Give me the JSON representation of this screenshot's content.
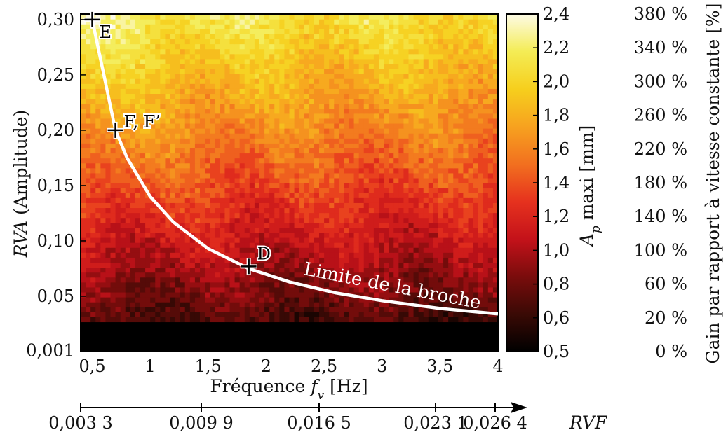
{
  "chart_data": {
    "type": "heatmap",
    "xlabel": "Fréquence",
    "xlabel_var": "f",
    "xlabel_sub": "v",
    "xlabel_unit": "[Hz]",
    "ylabel_var": "RVA",
    "ylabel_rest": "(Amplitude)",
    "xlim": [
      0.4,
      4.0
    ],
    "ylim": [
      0.0,
      0.305
    ],
    "x_ticks": [
      {
        "v": 0.5,
        "t": "0,5"
      },
      {
        "v": 1.0,
        "t": "1"
      },
      {
        "v": 1.5,
        "t": "1,5"
      },
      {
        "v": 2.0,
        "t": "2"
      },
      {
        "v": 2.5,
        "t": "2,5"
      },
      {
        "v": 3.0,
        "t": "3"
      },
      {
        "v": 3.5,
        "t": "3,5"
      },
      {
        "v": 4.0,
        "t": "4"
      }
    ],
    "y_ticks": [
      {
        "v": 0.001,
        "t": "0,001"
      },
      {
        "v": 0.05,
        "t": "0,05"
      },
      {
        "v": 0.1,
        "t": "0,10"
      },
      {
        "v": 0.15,
        "t": "0,15"
      },
      {
        "v": 0.2,
        "t": "0,20"
      },
      {
        "v": 0.25,
        "t": "0,25"
      },
      {
        "v": 0.3,
        "t": "0,30"
      }
    ],
    "colorbar": {
      "label_var": "A",
      "label_sub": "p",
      "label_rest": "maxi [mm]",
      "range": [
        0.5,
        2.4
      ],
      "ticks": [
        "2,4",
        "2,2",
        "2,0",
        "1,8",
        "1,6",
        "1,4",
        "1,2",
        "1,0",
        "0,8",
        "0,6",
        "0,5"
      ],
      "stops": [
        "#000000",
        "#3a0a05",
        "#7a0c0c",
        "#c4121a",
        "#e6321e",
        "#f2701f",
        "#f7a21f",
        "#f6cf1d",
        "#f4ec55",
        "#fdfbe6"
      ]
    },
    "gain_axis": {
      "label": "Gain par rapport à vitesse constante [%]",
      "ticks": [
        "380 %",
        "340 %",
        "300 %",
        "260 %",
        "220 %",
        "180 %",
        "140 %",
        "100 %",
        "60 %",
        "20 %",
        "0 %"
      ]
    },
    "rvf_axis": {
      "label": "RVF",
      "ticks": [
        "0,003 3",
        "0,009 9",
        "0,016 5",
        "0,023 1",
        "0,026 4"
      ]
    },
    "curve_label": "Limite de la broche",
    "spindle_limit": {
      "x": [
        0.5,
        0.6,
        0.7,
        0.8,
        1.0,
        1.2,
        1.5,
        1.85,
        2.2,
        2.6,
        3.0,
        3.5,
        4.0
      ],
      "y": [
        0.3,
        0.25,
        0.2,
        0.175,
        0.14,
        0.117,
        0.093,
        0.075,
        0.063,
        0.053,
        0.046,
        0.039,
        0.034
      ]
    },
    "points": [
      {
        "label": "E",
        "x": 0.5,
        "y": 0.3
      },
      {
        "label": "F, F’",
        "x": 0.7,
        "y": 0.2
      },
      {
        "label": "D",
        "x": 1.85,
        "y": 0.077
      }
    ]
  }
}
